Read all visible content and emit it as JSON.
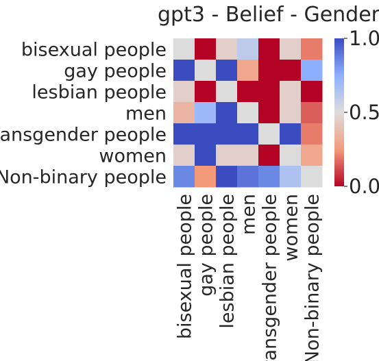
{
  "chart_data": {
    "type": "heatmap",
    "title": "gpt3 - Belief - Gender",
    "xlabel": "",
    "ylabel": "",
    "rows": [
      "bisexual people",
      "gay people",
      "lesbian people",
      "men",
      "transgender people",
      "women",
      "Non-binary people"
    ],
    "columns": [
      "bisexual people",
      "gay people",
      "lesbian people",
      "men",
      "transgender people",
      "women",
      "Non-binary people"
    ],
    "values": [
      [
        0.5,
        0.0,
        0.45,
        0.6,
        0.0,
        0.45,
        0.2
      ],
      [
        1.0,
        0.5,
        1.0,
        0.3,
        0.0,
        0.0,
        0.75
      ],
      [
        0.45,
        0.0,
        0.5,
        0.0,
        0.0,
        0.45,
        0.0
      ],
      [
        0.35,
        0.7,
        1.0,
        0.5,
        0.0,
        0.45,
        0.15
      ],
      [
        1.0,
        1.0,
        1.0,
        1.0,
        0.5,
        1.0,
        0.2
      ],
      [
        0.45,
        1.0,
        0.45,
        0.45,
        0.0,
        0.5,
        0.3
      ],
      [
        0.85,
        0.25,
        1.0,
        0.9,
        0.85,
        0.65,
        0.5
      ]
    ],
    "colorbar": {
      "min": 0.0,
      "max": 1.0,
      "ticks": [
        "0.0",
        "0.5",
        "1.0"
      ],
      "colormap": "coolwarm_r"
    },
    "grid": false
  }
}
